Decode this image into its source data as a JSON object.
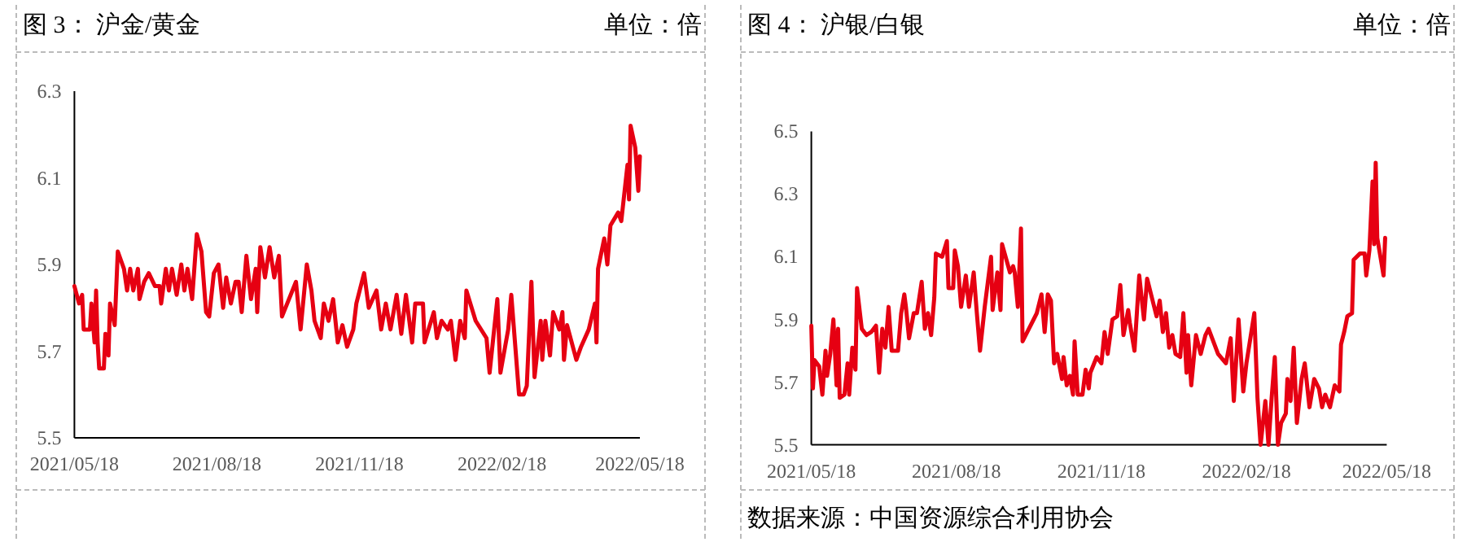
{
  "chart_data": [
    {
      "type": "line",
      "title": "图 3：    沪金/黄金",
      "ylabel": "单位：倍",
      "xlim": [
        "2021-05-18",
        "2022-05-18"
      ],
      "ylim": [
        5.5,
        6.3
      ],
      "yticks": [
        5.5,
        5.7,
        5.9,
        6.1,
        6.3
      ],
      "xticks": [
        {
          "value": "2021-05-18",
          "label": "2021/05/18"
        },
        {
          "value": "2021-08-18",
          "label": "2021/08/18"
        },
        {
          "value": "2021-11-18",
          "label": "2021/11/18"
        },
        {
          "value": "2022-02-18",
          "label": "2022/02/18"
        },
        {
          "value": "2022-05-18",
          "label": "2022/05/18"
        }
      ],
      "x": [
        "2021-05-18",
        "2021-05-21",
        "2021-05-23",
        "2021-05-24",
        "2021-05-28",
        "2021-05-29",
        "2021-05-31",
        "2021-06-01",
        "2021-06-02",
        "2021-06-03",
        "2021-06-06",
        "2021-06-07",
        "2021-06-09",
        "2021-06-10",
        "2021-06-13",
        "2021-06-15",
        "2021-06-19",
        "2021-06-21",
        "2021-06-23",
        "2021-06-25",
        "2021-06-28",
        "2021-06-29",
        "2021-07-02",
        "2021-07-05",
        "2021-07-09",
        "2021-07-12",
        "2021-07-13",
        "2021-07-16",
        "2021-07-18",
        "2021-07-20",
        "2021-07-23",
        "2021-07-26",
        "2021-07-28",
        "2021-07-30",
        "2021-08-02",
        "2021-08-05",
        "2021-08-08",
        "2021-08-11",
        "2021-08-13",
        "2021-08-16",
        "2021-08-19",
        "2021-08-22",
        "2021-08-24",
        "2021-08-27",
        "2021-08-30",
        "2021-09-01",
        "2021-09-03",
        "2021-09-06",
        "2021-09-09",
        "2021-09-12",
        "2021-09-13",
        "2021-09-15",
        "2021-09-18",
        "2021-09-21",
        "2021-09-24",
        "2021-09-27",
        "2021-09-29",
        "2021-10-08",
        "2021-10-11",
        "2021-10-15",
        "2021-10-18",
        "2021-10-20",
        "2021-10-24",
        "2021-10-26",
        "2021-10-29",
        "2021-11-01",
        "2021-11-04",
        "2021-11-07",
        "2021-11-10",
        "2021-11-14",
        "2021-11-16",
        "2021-11-21",
        "2021-11-24",
        "2021-11-29",
        "2021-12-02",
        "2021-12-05",
        "2021-12-08",
        "2021-12-12",
        "2021-12-15",
        "2021-12-18",
        "2021-12-22",
        "2021-12-24",
        "2021-12-29",
        "2021-12-30",
        "2022-01-05",
        "2022-01-07",
        "2022-01-10",
        "2022-01-14",
        "2022-01-16",
        "2022-01-19",
        "2022-01-22",
        "2022-01-25",
        "2022-01-26",
        "2022-02-01",
        "2022-02-08",
        "2022-02-10",
        "2022-02-15",
        "2022-02-17",
        "2022-02-22",
        "2022-02-24",
        "2022-03-01",
        "2022-03-04",
        "2022-03-06",
        "2022-03-09",
        "2022-03-11",
        "2022-03-15",
        "2022-03-16",
        "2022-03-18",
        "2022-03-21",
        "2022-03-23",
        "2022-03-27",
        "2022-03-29",
        "2022-03-30",
        "2022-04-01",
        "2022-04-07",
        "2022-04-10",
        "2022-04-15",
        "2022-04-19",
        "2022-04-20",
        "2022-04-21",
        "2022-04-25",
        "2022-04-27",
        "2022-04-29",
        "2022-05-04",
        "2022-05-06",
        "2022-05-10",
        "2022-05-11",
        "2022-05-12",
        "2022-05-15",
        "2022-05-17",
        "2022-05-18"
      ],
      "series": [
        {
          "color": "#e60012",
          "values": [
            5.85,
            5.81,
            5.83,
            5.75,
            5.75,
            5.81,
            5.72,
            5.84,
            5.72,
            5.66,
            5.66,
            5.74,
            5.69,
            5.81,
            5.76,
            5.93,
            5.89,
            5.84,
            5.89,
            5.84,
            5.89,
            5.82,
            5.86,
            5.88,
            5.85,
            5.85,
            5.81,
            5.89,
            5.84,
            5.89,
            5.83,
            5.9,
            5.84,
            5.89,
            5.82,
            5.97,
            5.93,
            5.79,
            5.78,
            5.88,
            5.9,
            5.8,
            5.87,
            5.81,
            5.86,
            5.86,
            5.79,
            5.92,
            5.82,
            5.89,
            5.79,
            5.94,
            5.87,
            5.94,
            5.87,
            5.92,
            5.78,
            5.86,
            5.75,
            5.9,
            5.84,
            5.77,
            5.73,
            5.81,
            5.77,
            5.82,
            5.72,
            5.76,
            5.71,
            5.75,
            5.81,
            5.88,
            5.8,
            5.84,
            5.75,
            5.81,
            5.75,
            5.83,
            5.74,
            5.83,
            5.72,
            5.81,
            5.81,
            5.72,
            5.79,
            5.73,
            5.77,
            5.75,
            5.77,
            5.68,
            5.77,
            5.73,
            5.84,
            5.77,
            5.73,
            5.65,
            5.82,
            5.65,
            5.75,
            5.83,
            5.6,
            5.6,
            5.62,
            5.86,
            5.64,
            5.77,
            5.68,
            5.77,
            5.69,
            5.79,
            5.75,
            5.79,
            5.68,
            5.76,
            5.68,
            5.71,
            5.75,
            5.81,
            5.72,
            5.89,
            5.96,
            5.9,
            5.99,
            6.02,
            6.0,
            6.13,
            6.05,
            6.22,
            6.17,
            6.07,
            6.15
          ]
        }
      ]
    },
    {
      "type": "line",
      "title": "图 4：    沪银/白银",
      "ylabel": "单位：倍",
      "xlim": [
        "2021-05-18",
        "2022-05-18"
      ],
      "ylim": [
        5.5,
        6.5
      ],
      "yticks": [
        5.5,
        5.7,
        5.9,
        6.1,
        6.3,
        6.5
      ],
      "xticks": [
        {
          "value": "2021-05-18",
          "label": "2021/05/18"
        },
        {
          "value": "2021-08-18",
          "label": "2021/08/18"
        },
        {
          "value": "2021-11-18",
          "label": "2021/11/18"
        },
        {
          "value": "2022-02-18",
          "label": "2022/02/18"
        },
        {
          "value": "2022-05-18",
          "label": "2022/05/18"
        }
      ],
      "annotations": [
        "数据来源：中国资源综合利用协会"
      ],
      "x": [
        "2021-05-18",
        "2021-05-19",
        "2021-05-20",
        "2021-05-23",
        "2021-05-25",
        "2021-05-27",
        "2021-05-28",
        "2021-05-30",
        "2021-06-01",
        "2021-06-03",
        "2021-06-04",
        "2021-06-05",
        "2021-06-08",
        "2021-06-10",
        "2021-06-11",
        "2021-06-13",
        "2021-06-15",
        "2021-06-16",
        "2021-06-19",
        "2021-06-22",
        "2021-06-25",
        "2021-06-28",
        "2021-06-30",
        "2021-07-02",
        "2021-07-04",
        "2021-07-06",
        "2021-07-08",
        "2021-07-12",
        "2021-07-14",
        "2021-07-16",
        "2021-07-17",
        "2021-07-19",
        "2021-07-22",
        "2021-07-24",
        "2021-07-27",
        "2021-07-29",
        "2021-07-31",
        "2021-08-02",
        "2021-08-04",
        "2021-08-05",
        "2021-08-09",
        "2021-08-12",
        "2021-08-13",
        "2021-08-16",
        "2021-08-17",
        "2021-08-19",
        "2021-08-21",
        "2021-08-24",
        "2021-08-26",
        "2021-08-29",
        "2021-08-31",
        "2021-09-02",
        "2021-09-05",
        "2021-09-09",
        "2021-09-10",
        "2021-09-13",
        "2021-09-15",
        "2021-09-16",
        "2021-09-21",
        "2021-09-23",
        "2021-09-24",
        "2021-09-26",
        "2021-09-28",
        "2021-09-29",
        "2021-10-08",
        "2021-10-11",
        "2021-10-13",
        "2021-10-15",
        "2021-10-17",
        "2021-10-19",
        "2021-10-21",
        "2021-10-24",
        "2021-10-25",
        "2021-10-27",
        "2021-10-29",
        "2021-10-31",
        "2021-11-01",
        "2021-11-03",
        "2021-11-06",
        "2021-11-08",
        "2021-11-10",
        "2021-11-11",
        "2021-11-15",
        "2021-11-18",
        "2021-11-20",
        "2021-11-22",
        "2021-11-25",
        "2021-11-28",
        "2021-11-30",
        "2021-12-02",
        "2021-12-05",
        "2021-12-06",
        "2021-12-09",
        "2021-12-12",
        "2021-12-15",
        "2021-12-17",
        "2021-12-21",
        "2021-12-23",
        "2021-12-25",
        "2021-12-27",
        "2021-12-29",
        "2021-12-31",
        "2022-01-02",
        "2022-01-04",
        "2022-01-07",
        "2022-01-09",
        "2022-01-11",
        "2022-01-12",
        "2022-01-14",
        "2022-01-17",
        "2022-01-20",
        "2022-01-23",
        "2022-01-25",
        "2022-01-31",
        "2022-02-05",
        "2022-02-08",
        "2022-02-10",
        "2022-02-13",
        "2022-02-16",
        "2022-02-18",
        "2022-02-23",
        "2022-02-25",
        "2022-02-27",
        "2022-03-02",
        "2022-03-04",
        "2022-03-06",
        "2022-03-08",
        "2022-03-10",
        "2022-03-12",
        "2022-03-15",
        "2022-03-16",
        "2022-03-18",
        "2022-03-20",
        "2022-03-22",
        "2022-03-25",
        "2022-03-27",
        "2022-03-30",
        "2022-04-02",
        "2022-04-05",
        "2022-04-07",
        "2022-04-09",
        "2022-04-12",
        "2022-04-15",
        "2022-04-18",
        "2022-04-19",
        "2022-04-21",
        "2022-04-23",
        "2022-04-26",
        "2022-04-27",
        "2022-05-01",
        "2022-05-04",
        "2022-05-05",
        "2022-05-07",
        "2022-05-09",
        "2022-05-10",
        "2022-05-11",
        "2022-05-12",
        "2022-05-16",
        "2022-05-17"
      ],
      "series": [
        {
          "color": "#e60012",
          "values": [
            5.88,
            5.68,
            5.77,
            5.75,
            5.66,
            5.8,
            5.72,
            5.79,
            5.9,
            5.69,
            5.87,
            5.65,
            5.66,
            5.76,
            5.66,
            5.81,
            5.74,
            6.0,
            5.87,
            5.85,
            5.86,
            5.88,
            5.73,
            5.87,
            5.81,
            5.94,
            5.8,
            5.8,
            5.92,
            5.98,
            5.94,
            5.84,
            5.92,
            5.92,
            6.02,
            5.87,
            5.92,
            5.85,
            5.97,
            6.11,
            6.1,
            6.15,
            6.0,
            6.0,
            6.12,
            6.07,
            5.94,
            6.04,
            5.94,
            6.05,
            5.92,
            5.8,
            5.94,
            6.1,
            5.93,
            6.05,
            5.93,
            6.14,
            6.05,
            6.07,
            6.05,
            5.94,
            6.19,
            5.83,
            5.92,
            5.98,
            5.86,
            5.98,
            5.96,
            5.76,
            5.79,
            5.71,
            5.78,
            5.69,
            5.72,
            5.66,
            5.83,
            5.66,
            5.66,
            5.74,
            5.68,
            5.73,
            5.78,
            5.76,
            5.86,
            5.79,
            5.9,
            5.91,
            6.01,
            5.85,
            5.93,
            5.89,
            5.8,
            6.04,
            5.9,
            6.03,
            5.95,
            5.91,
            5.96,
            5.86,
            5.92,
            5.81,
            5.85,
            5.79,
            5.78,
            5.92,
            5.73,
            5.85,
            5.69,
            5.85,
            5.79,
            5.85,
            5.87,
            5.79,
            5.76,
            5.84,
            5.64,
            5.9,
            5.67,
            5.76,
            5.92,
            5.65,
            5.5,
            5.64,
            5.5,
            5.65,
            5.78,
            5.5,
            5.57,
            5.6,
            5.71,
            5.64,
            5.81,
            5.57,
            5.71,
            5.76,
            5.62,
            5.71,
            5.68,
            5.62,
            5.66,
            5.62,
            5.69,
            5.67,
            5.82,
            5.86,
            5.91,
            5.92,
            6.09,
            6.11,
            6.11,
            6.04,
            6.12,
            6.34,
            6.14,
            6.4,
            6.16,
            6.04,
            6.16
          ]
        }
      ]
    }
  ]
}
